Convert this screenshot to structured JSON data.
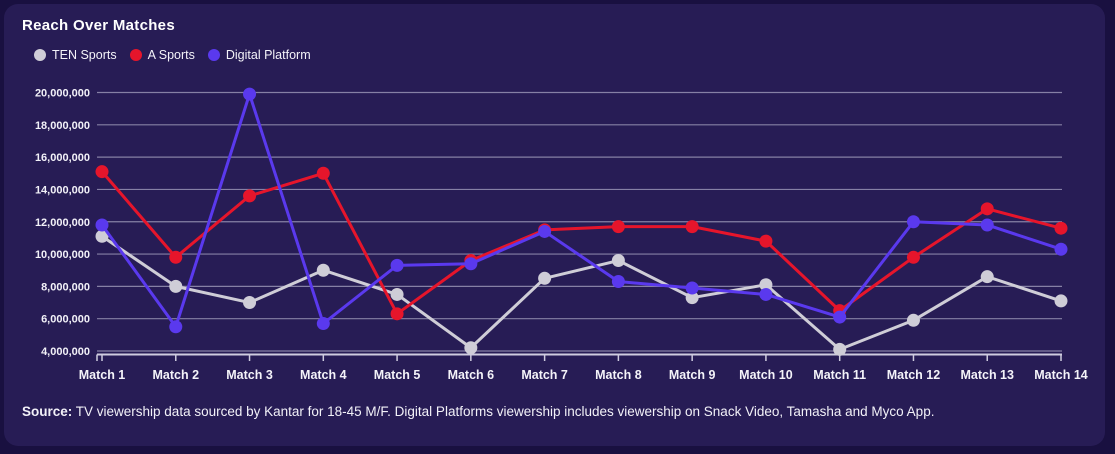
{
  "title": "Reach Over Matches",
  "legend": [
    {
      "label": "TEN Sports",
      "color": "#cfcdd7"
    },
    {
      "label": "A Sports",
      "color": "#e6152b"
    },
    {
      "label": "Digital Platform",
      "color": "#5a39ee"
    }
  ],
  "source": {
    "label": "Source:",
    "text": " TV viewership data sourced by Kantar for 18-45 M/F. Digital Platforms viewership includes viewership on Snack Video, Tamasha and Myco App."
  },
  "colors": {
    "card_background": "#271c55",
    "page_background": "#191040",
    "gridline": "#d6d3e8",
    "axis": "#cfccdf",
    "text": "#ffffff"
  },
  "chart_data": {
    "type": "line",
    "title": "Reach Over Matches",
    "xlabel": "",
    "ylabel": "",
    "grid": true,
    "legend_position": "top",
    "ylim": [
      4000000,
      20000000
    ],
    "categories": [
      "Match 1",
      "Match 2",
      "Match 3",
      "Match 4",
      "Match 5",
      "Match 6",
      "Match 7",
      "Match 8",
      "Match 9",
      "Match 10",
      "Match 11",
      "Match 12",
      "Match 13",
      "Match 14"
    ],
    "y_ticks": [
      {
        "value": 20000000,
        "label": "20,000,000"
      },
      {
        "value": 18000000,
        "label": "18,000,000"
      },
      {
        "value": 16000000,
        "label": "16,000,000"
      },
      {
        "value": 14000000,
        "label": "14,000,000"
      },
      {
        "value": 12000000,
        "label": "12,000,000"
      },
      {
        "value": 10000000,
        "label": "10,000,000"
      },
      {
        "value": 8000000,
        "label": "8,000,000"
      },
      {
        "value": 6000000,
        "label": "6,000,000"
      },
      {
        "value": 4000000,
        "label": "4,000,000"
      }
    ],
    "series": [
      {
        "name": "TEN Sports",
        "color": "#cfcdd7",
        "values": [
          11100000,
          8000000,
          7000000,
          9000000,
          7500000,
          4200000,
          8500000,
          9600000,
          7300000,
          8100000,
          4100000,
          5900000,
          8600000,
          7100000
        ]
      },
      {
        "name": "A Sports",
        "color": "#e6152b",
        "values": [
          15100000,
          9800000,
          13600000,
          15000000,
          6300000,
          9600000,
          11500000,
          11700000,
          11700000,
          10800000,
          6500000,
          9800000,
          12800000,
          11600000
        ]
      },
      {
        "name": "Digital Platform",
        "color": "#5a39ee",
        "values": [
          11800000,
          5500000,
          19900000,
          5700000,
          9300000,
          9400000,
          11400000,
          8300000,
          7900000,
          7500000,
          6100000,
          12000000,
          11800000,
          10300000
        ]
      }
    ]
  }
}
